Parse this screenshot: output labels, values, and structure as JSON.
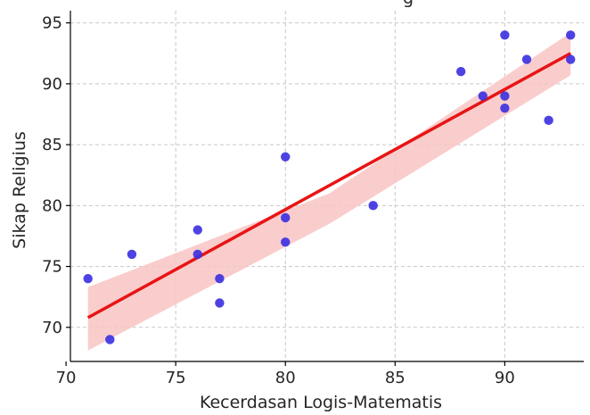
{
  "chart_data": {
    "type": "scatter",
    "title_visible_fragment": "g",
    "xlabel": "Kecerdasan Logis-Matematis",
    "ylabel": "Sikap Religius",
    "xlim": [
      70.2,
      93.6
    ],
    "ylim": [
      67.2,
      96
    ],
    "x_ticks": [
      70,
      75,
      80,
      85,
      90
    ],
    "y_ticks": [
      70,
      75,
      80,
      85,
      90,
      95
    ],
    "grid": true,
    "points": [
      {
        "x": 71,
        "y": 74
      },
      {
        "x": 72,
        "y": 69
      },
      {
        "x": 73,
        "y": 76
      },
      {
        "x": 76,
        "y": 78
      },
      {
        "x": 76,
        "y": 76
      },
      {
        "x": 77,
        "y": 74
      },
      {
        "x": 77,
        "y": 72
      },
      {
        "x": 80,
        "y": 84
      },
      {
        "x": 80,
        "y": 79
      },
      {
        "x": 80,
        "y": 77
      },
      {
        "x": 84,
        "y": 80
      },
      {
        "x": 88,
        "y": 91
      },
      {
        "x": 89,
        "y": 89
      },
      {
        "x": 90,
        "y": 94
      },
      {
        "x": 90,
        "y": 89
      },
      {
        "x": 90,
        "y": 88
      },
      {
        "x": 91,
        "y": 92
      },
      {
        "x": 92,
        "y": 87
      },
      {
        "x": 93,
        "y": 94
      },
      {
        "x": 93,
        "y": 92
      }
    ],
    "regression": {
      "x_start": 71,
      "y_start": 70.8,
      "x_end": 93,
      "y_end": 92.5,
      "ci_upper_start": 73.3,
      "ci_lower_start": 68.1,
      "ci_upper_mid": 81.0,
      "ci_lower_mid": 78.5,
      "ci_upper_end": 94.2,
      "ci_lower_end": 90.7
    },
    "colors": {
      "points": "#3a2fe0",
      "line": "#e81414",
      "band": "#f9c4c4",
      "grid": "#c8c8c8",
      "axis": "#000000",
      "text": "#262626"
    }
  }
}
